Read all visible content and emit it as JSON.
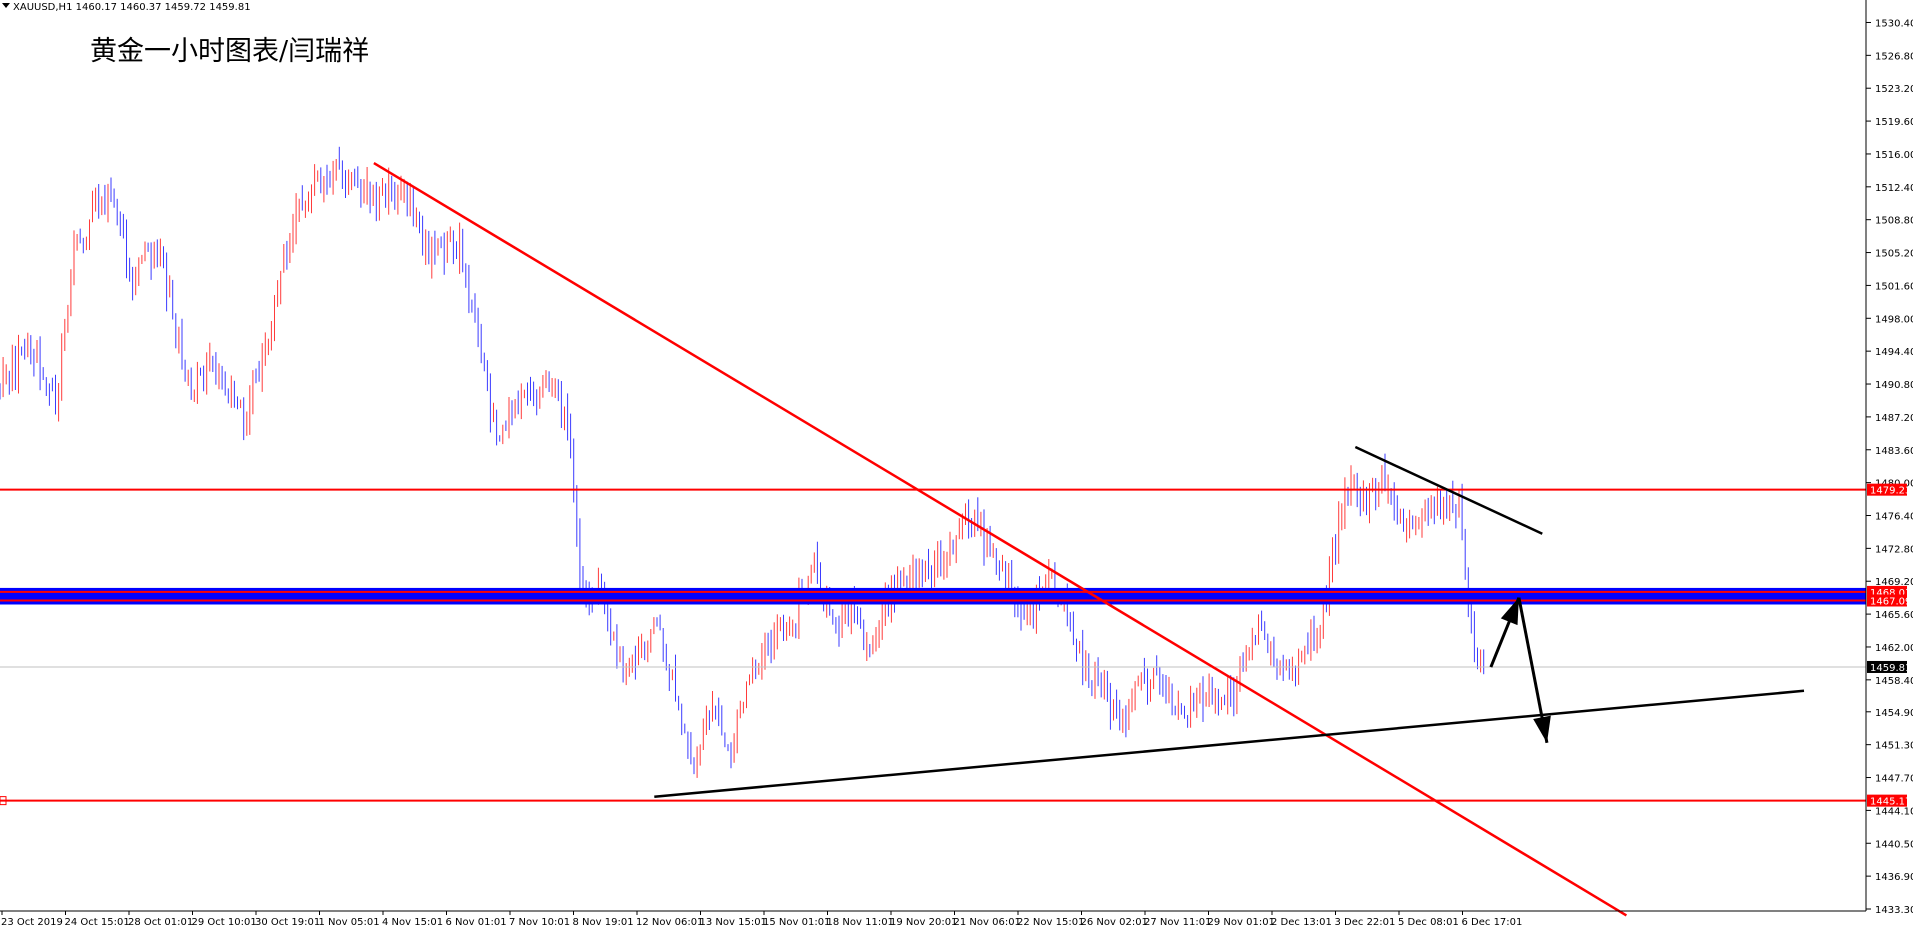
{
  "header": {
    "symbol_line": "XAUUSD,H1  1460.17 1460.37 1459.72 1459.81",
    "annotation_title": "黄金一小时图表/闫瑞祥"
  },
  "colors": {
    "background": "#ffffff",
    "bull_candle": "#ff3b3b",
    "bear_candle": "#3b3bff",
    "resistance_line": "#ff0000",
    "highlight_band": "#0000ff",
    "trend_line": "#000000",
    "downtrend_line": "#ff0000",
    "label_red_bg": "#ff0000",
    "label_dark_bg": "#000000",
    "grid": "#d9d9d9"
  },
  "chart_data": {
    "type": "candlestick",
    "title": "黄金一小时图表/闫瑞祥",
    "symbol": "XAUUSD",
    "timeframe": "H1",
    "last_quote": {
      "open": 1460.17,
      "high": 1460.37,
      "low": 1459.72,
      "close": 1459.81
    },
    "ylim": [
      1433.3,
      1531.0
    ],
    "y_ticks": [
      "1530.40",
      "1526.80",
      "1523.20",
      "1519.60",
      "1516.00",
      "1512.40",
      "1508.80",
      "1505.20",
      "1501.60",
      "1498.00",
      "1494.40",
      "1490.80",
      "1487.20",
      "1483.60",
      "1480.00",
      "1476.40",
      "1472.80",
      "1469.20",
      "1465.60",
      "1462.00",
      "1458.40",
      "1454.90",
      "1451.30",
      "1447.70",
      "1444.10",
      "1440.50",
      "1436.90",
      "1433.30"
    ],
    "x_ticks": [
      "23 Oct 2019",
      "24 Oct 15:01",
      "28 Oct 01:01",
      "29 Oct 10:01",
      "30 Oct 19:01",
      "1 Nov 05:01",
      "4 Nov 15:01",
      "6 Nov 01:01",
      "7 Nov 10:01",
      "8 Nov 19:01",
      "12 Nov 06:01",
      "13 Nov 15:01",
      "15 Nov 01:01",
      "18 Nov 11:01",
      "19 Nov 20:01",
      "21 Nov 06:01",
      "22 Nov 15:01",
      "26 Nov 02:01",
      "27 Nov 11:01",
      "29 Nov 01:01",
      "2 Dec 13:01",
      "3 Dec 22:01",
      "5 Dec 08:01",
      "6 Dec 17:01"
    ],
    "price_path": [
      [
        0,
        1490
      ],
      [
        3,
        1495
      ],
      [
        6,
        1489
      ],
      [
        8,
        1506
      ],
      [
        12,
        1513
      ],
      [
        14,
        1503
      ],
      [
        17,
        1506
      ],
      [
        20,
        1491
      ],
      [
        23,
        1493
      ],
      [
        26,
        1487
      ],
      [
        29,
        1497
      ],
      [
        32,
        1511
      ],
      [
        36,
        1514
      ],
      [
        40,
        1511
      ],
      [
        43,
        1512
      ],
      [
        46,
        1505
      ],
      [
        49,
        1506
      ],
      [
        51,
        1497
      ],
      [
        53,
        1485
      ],
      [
        56,
        1489
      ],
      [
        59,
        1491
      ],
      [
        61,
        1485
      ],
      [
        62,
        1468
      ],
      [
        64,
        1468
      ],
      [
        67,
        1458
      ],
      [
        70,
        1464
      ],
      [
        72,
        1459
      ],
      [
        74,
        1449
      ],
      [
        76,
        1455
      ],
      [
        78,
        1450
      ],
      [
        80,
        1458
      ],
      [
        82,
        1462
      ],
      [
        85,
        1465
      ],
      [
        87,
        1471
      ],
      [
        89,
        1464
      ],
      [
        91,
        1466
      ],
      [
        93,
        1462
      ],
      [
        95,
        1467
      ],
      [
        97,
        1470
      ],
      [
        100,
        1470
      ],
      [
        102,
        1474
      ],
      [
        104,
        1476
      ],
      [
        106,
        1472
      ],
      [
        108,
        1469
      ],
      [
        110,
        1465
      ],
      [
        112,
        1470
      ],
      [
        114,
        1467
      ],
      [
        116,
        1460
      ],
      [
        118,
        1457
      ],
      [
        120,
        1454
      ],
      [
        122,
        1459
      ],
      [
        124,
        1458
      ],
      [
        126,
        1455
      ],
      [
        128,
        1456
      ],
      [
        130,
        1457
      ],
      [
        132,
        1456
      ],
      [
        134,
        1464
      ],
      [
        136,
        1462
      ],
      [
        138,
        1460
      ],
      [
        140,
        1462
      ],
      [
        142,
        1468
      ],
      [
        144,
        1480
      ],
      [
        146,
        1478
      ],
      [
        148,
        1481
      ],
      [
        150,
        1475
      ],
      [
        152,
        1476
      ],
      [
        154,
        1477
      ],
      [
        156,
        1478
      ],
      [
        157,
        1468
      ],
      [
        158,
        1460
      ],
      [
        159,
        1459.81
      ]
    ],
    "horizontal_levels": [
      {
        "price": 1479.23,
        "label": "1479.23",
        "style": "red"
      },
      {
        "price": 1468.03,
        "label": "1468.03",
        "style": "red"
      },
      {
        "price": 1467.09,
        "label": "1467.09",
        "style": "red"
      },
      {
        "price": 1459.81,
        "label": "1459.81",
        "style": "current"
      },
      {
        "price": 1445.17,
        "label": "1445.17",
        "style": "red"
      }
    ],
    "highlight_band": {
      "from": 1467.09,
      "to": 1468.03
    },
    "trend_lines": [
      {
        "name": "downtrend",
        "from": {
          "index": 40,
          "price": 1515.0
        },
        "to": {
          "index": 174,
          "price": 1432.6
        }
      },
      {
        "name": "support",
        "from": {
          "index": 70,
          "price": 1445.6
        },
        "to": {
          "index": 193,
          "price": 1457.2
        }
      },
      {
        "name": "short-resistance",
        "from": {
          "index": 145,
          "price": 1483.9
        },
        "to": {
          "index": 165,
          "price": 1474.4
        }
      }
    ],
    "arrows": [
      {
        "name": "up-arrow",
        "from": {
          "index": 159.5,
          "price": 1459.8
        },
        "to": {
          "index": 162.5,
          "price": 1467.4
        }
      },
      {
        "name": "down-arrow",
        "from": {
          "index": 162.5,
          "price": 1467.4
        },
        "to": {
          "index": 165.5,
          "price": 1451.5
        }
      }
    ],
    "grid": false,
    "legend": "none"
  }
}
